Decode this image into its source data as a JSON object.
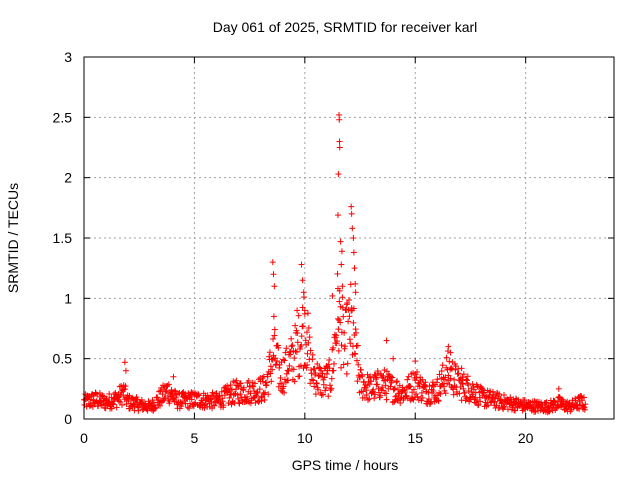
{
  "chart_data": {
    "type": "scatter",
    "title": "Day 061 of 2025, SRMTID for receiver karl",
    "xlabel": "GPS time / hours",
    "ylabel": "SRMTID / TECUs",
    "xlim": [
      0,
      24
    ],
    "ylim": [
      0,
      3
    ],
    "xticks": [
      "0",
      "5",
      "10",
      "15",
      "20"
    ],
    "xtick_values": [
      0,
      5,
      10,
      15,
      20
    ],
    "yticks": [
      "0",
      "0.5",
      "1",
      "1.5",
      "2",
      "2.5",
      "3"
    ],
    "ytick_values": [
      0,
      0.5,
      1,
      1.5,
      2,
      2.5,
      3
    ],
    "grid": true,
    "marker": "+",
    "color": "#ff0000",
    "series": [
      {
        "name": "SRMTID",
        "profile": [
          [
            0.0,
            0.14
          ],
          [
            0.5,
            0.16
          ],
          [
            1.0,
            0.14
          ],
          [
            1.5,
            0.17
          ],
          [
            1.8,
            0.22
          ],
          [
            2.0,
            0.14
          ],
          [
            2.5,
            0.12
          ],
          [
            3.0,
            0.1
          ],
          [
            3.5,
            0.18
          ],
          [
            3.8,
            0.24
          ],
          [
            4.2,
            0.15
          ],
          [
            5.0,
            0.16
          ],
          [
            6.0,
            0.15
          ],
          [
            6.8,
            0.22
          ],
          [
            7.5,
            0.23
          ],
          [
            8.2,
            0.25
          ],
          [
            8.6,
            0.55
          ],
          [
            8.9,
            0.35
          ],
          [
            9.3,
            0.45
          ],
          [
            9.7,
            0.6
          ],
          [
            10.0,
            0.8
          ],
          [
            10.3,
            0.4
          ],
          [
            10.8,
            0.3
          ],
          [
            11.2,
            0.35
          ],
          [
            11.5,
            0.9
          ],
          [
            11.8,
            0.6
          ],
          [
            12.1,
            0.8
          ],
          [
            12.5,
            0.3
          ],
          [
            13.0,
            0.25
          ],
          [
            13.5,
            0.3
          ],
          [
            14.0,
            0.25
          ],
          [
            14.5,
            0.22
          ],
          [
            15.0,
            0.3
          ],
          [
            15.5,
            0.22
          ],
          [
            16.0,
            0.24
          ],
          [
            16.5,
            0.4
          ],
          [
            17.0,
            0.28
          ],
          [
            17.5,
            0.25
          ],
          [
            18.0,
            0.18
          ],
          [
            19.0,
            0.14
          ],
          [
            20.0,
            0.11
          ],
          [
            21.0,
            0.1
          ],
          [
            21.5,
            0.13
          ],
          [
            22.0,
            0.1
          ],
          [
            22.5,
            0.14
          ],
          [
            22.7,
            0.12
          ]
        ],
        "spikes": [
          [
            1.85,
            0.47
          ],
          [
            1.9,
            0.4
          ],
          [
            4.05,
            0.35
          ],
          [
            8.55,
            1.3
          ],
          [
            8.58,
            1.2
          ],
          [
            8.62,
            1.1
          ],
          [
            8.6,
            0.85
          ],
          [
            9.65,
            0.9
          ],
          [
            9.85,
            1.28
          ],
          [
            9.9,
            1.15
          ],
          [
            9.95,
            1.05
          ],
          [
            10.0,
            0.9
          ],
          [
            10.1,
            0.72
          ],
          [
            11.25,
            1.02
          ],
          [
            11.55,
            2.52
          ],
          [
            11.56,
            2.48
          ],
          [
            11.57,
            2.3
          ],
          [
            11.58,
            2.25
          ],
          [
            11.52,
            2.03
          ],
          [
            11.5,
            1.69
          ],
          [
            11.62,
            1.47
          ],
          [
            11.68,
            1.39
          ],
          [
            11.65,
            1.28
          ],
          [
            11.7,
            1.1
          ],
          [
            11.5,
            0.83
          ],
          [
            11.55,
            0.82
          ],
          [
            12.1,
            1.76
          ],
          [
            12.12,
            1.7
          ],
          [
            12.15,
            1.58
          ],
          [
            12.2,
            1.5
          ],
          [
            12.22,
            1.38
          ],
          [
            12.25,
            1.25
          ],
          [
            12.28,
            1.12
          ],
          [
            12.3,
            1.05
          ],
          [
            11.9,
            0.95
          ],
          [
            13.7,
            0.65
          ],
          [
            14.0,
            0.5
          ],
          [
            15.0,
            0.48
          ],
          [
            16.5,
            0.6
          ],
          [
            16.6,
            0.55
          ],
          [
            17.1,
            0.42
          ],
          [
            21.5,
            0.25
          ]
        ]
      }
    ]
  }
}
